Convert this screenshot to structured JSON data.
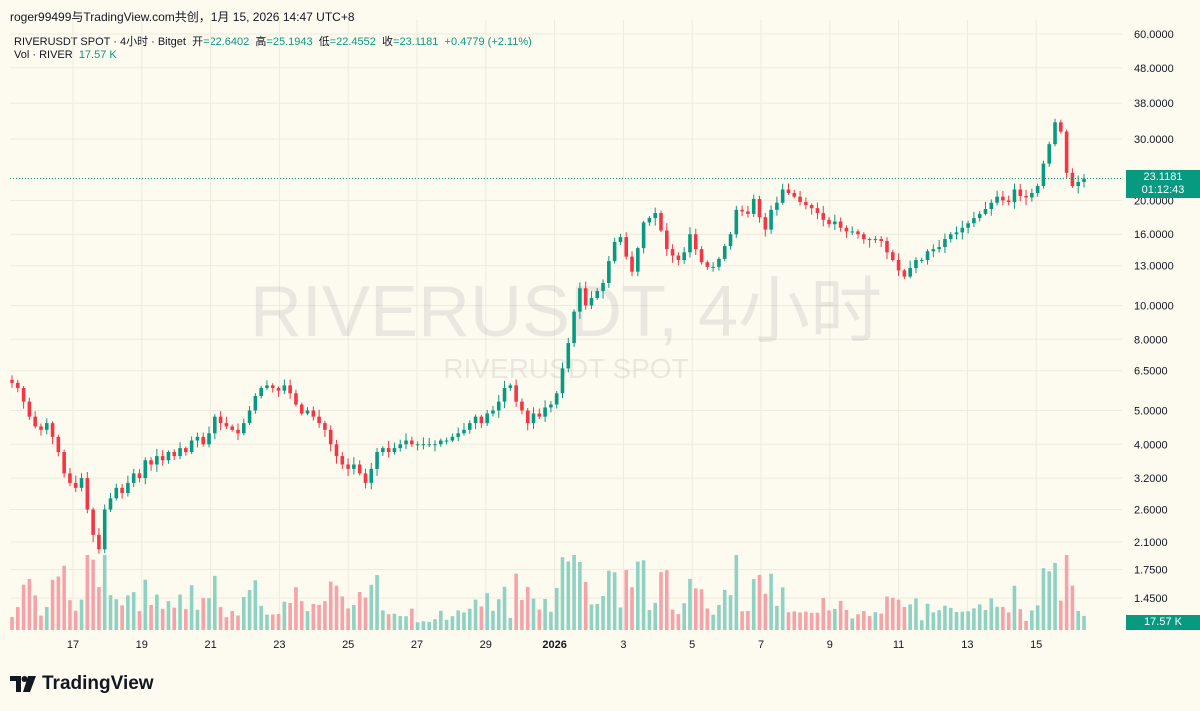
{
  "header": {
    "attribution": "roger99499与TradingView.com共创，1月 15, 2026 14:47 UTC+8"
  },
  "legend": {
    "symbol": "RIVERUSDT SPOT · 4小时 · Bitget",
    "open_label": "开",
    "open": "=22.6402",
    "high_label": "高",
    "high": "=25.1943",
    "low_label": "低",
    "low": "=22.4552",
    "close_label": "收",
    "close": "=23.1181",
    "change": "+0.4779 (+2.11%)",
    "volume_label": "Vol · RIVER",
    "volume": "17.57 K"
  },
  "watermark": {
    "main": "RIVERUSDT, 4小时",
    "sub": "RIVERUSDT SPOT"
  },
  "price_tag": {
    "price": "23.1181",
    "countdown": "01:12:43"
  },
  "volume_tag": "17.57 K",
  "logo_text": "TradingView",
  "colors": {
    "up": "#089981",
    "down": "#f23645",
    "up_vol": "#8fd2c4",
    "down_vol": "#f5a3a8",
    "background": "#fdfaf0"
  },
  "chart_data": {
    "type": "candlestick",
    "y_scale": "log",
    "y_ticks": [
      "60.0000",
      "48.0000",
      "38.0000",
      "30.0000",
      "20.0000",
      "16.0000",
      "13.0000",
      "10.0000",
      "8.0000",
      "6.5000",
      "5.0000",
      "4.0000",
      "3.2000",
      "2.6000",
      "2.1000",
      "1.7500",
      "1.4500"
    ],
    "x_ticks": [
      "17",
      "19",
      "21",
      "23",
      "25",
      "27",
      "29",
      "2026",
      "3",
      "5",
      "7",
      "9",
      "11",
      "13",
      "15"
    ],
    "last_price": 23.1181,
    "closes": [
      6.0,
      5.8,
      5.3,
      4.8,
      4.5,
      4.4,
      4.6,
      4.2,
      3.8,
      3.3,
      3.1,
      3.0,
      3.2,
      2.6,
      2.2,
      2.0,
      2.6,
      2.8,
      3.0,
      2.9,
      3.1,
      3.3,
      3.2,
      3.6,
      3.5,
      3.7,
      3.6,
      3.8,
      3.7,
      3.9,
      3.8,
      4.1,
      4.2,
      4.0,
      4.3,
      4.8,
      4.6,
      4.5,
      4.4,
      4.3,
      4.6,
      5.0,
      5.5,
      5.8,
      5.9,
      5.8,
      5.7,
      5.9,
      5.6,
      5.2,
      4.9,
      5.0,
      4.8,
      4.6,
      4.4,
      4.0,
      3.7,
      3.5,
      3.4,
      3.5,
      3.3,
      3.1,
      3.4,
      3.8,
      3.9,
      3.8,
      3.9,
      4.0,
      4.1,
      4.0,
      4.0,
      4.0,
      4.0,
      4.0,
      4.1,
      4.1,
      4.2,
      4.3,
      4.4,
      4.6,
      4.8,
      4.6,
      4.9,
      5.0,
      5.3,
      5.8,
      5.9,
      5.3,
      5.0,
      4.6,
      4.9,
      4.8,
      5.1,
      5.2,
      5.6,
      6.6,
      7.8,
      9.6,
      11.2,
      10.0,
      10.5,
      11.0,
      11.6,
      13.4,
      15.2,
      15.7,
      13.8,
      12.5,
      14.6,
      17.3,
      17.8,
      18.4,
      16.4,
      14.5,
      13.9,
      13.5,
      14.2,
      16.0,
      14.5,
      13.3,
      12.9,
      12.9,
      13.6,
      14.8,
      16.0,
      18.8,
      18.6,
      18.3,
      20.2,
      17.9,
      16.5,
      18.8,
      19.7,
      21.5,
      21.0,
      20.5,
      19.8,
      19.4,
      19.0,
      18.4,
      17.6,
      17.1,
      17.4,
      16.7,
      16.3,
      16.3,
      16.0,
      15.5,
      15.4,
      15.5,
      15.3,
      14.2,
      13.5,
      12.6,
      12.1,
      12.8,
      13.5,
      13.5,
      14.3,
      14.5,
      14.7,
      15.5,
      16.0,
      16.2,
      16.7,
      17.2,
      17.8,
      18.3,
      18.9,
      19.7,
      20.5,
      20.0,
      19.8,
      21.5,
      20.6,
      20.4,
      21.0,
      22.0,
      25.5,
      29.0,
      33.5,
      31.5,
      24.0,
      22.0,
      22.6,
      23.1
    ]
  }
}
